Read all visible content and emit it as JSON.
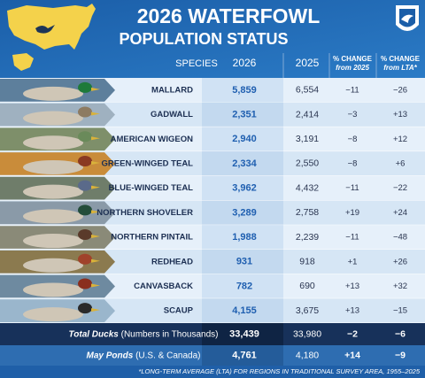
{
  "header": {
    "title_line1": "2026 WATERFOWL",
    "title_line2": "POPULATION STATUS"
  },
  "table": {
    "columns": [
      {
        "label": "SPECIES"
      },
      {
        "label": "2026"
      },
      {
        "label": "2025"
      },
      {
        "label": "% CHANGE",
        "sublabel": "from 2025"
      },
      {
        "label": "% CHANGE",
        "sublabel": "from LTA*"
      }
    ],
    "rows": [
      [
        "MALLARD",
        "5,859",
        "6,554",
        "−11",
        "−26"
      ],
      [
        "GADWALL",
        "2,351",
        "2,414",
        "−3",
        "+13"
      ],
      [
        "AMERICAN WIGEON",
        "2,940",
        "3,191",
        "−8",
        "+12"
      ],
      [
        "GREEN-WINGED TEAL",
        "2,334",
        "2,550",
        "−8",
        "+6"
      ],
      [
        "BLUE-WINGED TEAL",
        "3,962",
        "4,432",
        "−11",
        "−22"
      ],
      [
        "NORTHERN SHOVELER",
        "3,289",
        "2,758",
        "+19",
        "+24"
      ],
      [
        "NORTHERN PINTAIL",
        "1,988",
        "2,239",
        "−11",
        "−48"
      ],
      [
        "REDHEAD",
        "931",
        "918",
        "+1",
        "+26"
      ],
      [
        "CANVASBACK",
        "782",
        "690",
        "+13",
        "+32"
      ],
      [
        "SCAUP",
        "4,155",
        "3,675",
        "+13",
        "−15"
      ]
    ],
    "totals": [
      {
        "label": "Total Ducks",
        "note": "(Numbers in Thousands)",
        "values": [
          "33,439",
          "33,980",
          "−2",
          "−6"
        ]
      },
      {
        "label": "May Ponds",
        "note": "(U.S. & Canada)",
        "values": [
          "4,761",
          "4,180",
          "+14",
          "−9"
        ]
      }
    ]
  },
  "footnote": "*LONG-TERM AVERAGE (LTA) FOR REGIONS IN TRADITIONAL SURVEY AREA, 1955–2025"
}
